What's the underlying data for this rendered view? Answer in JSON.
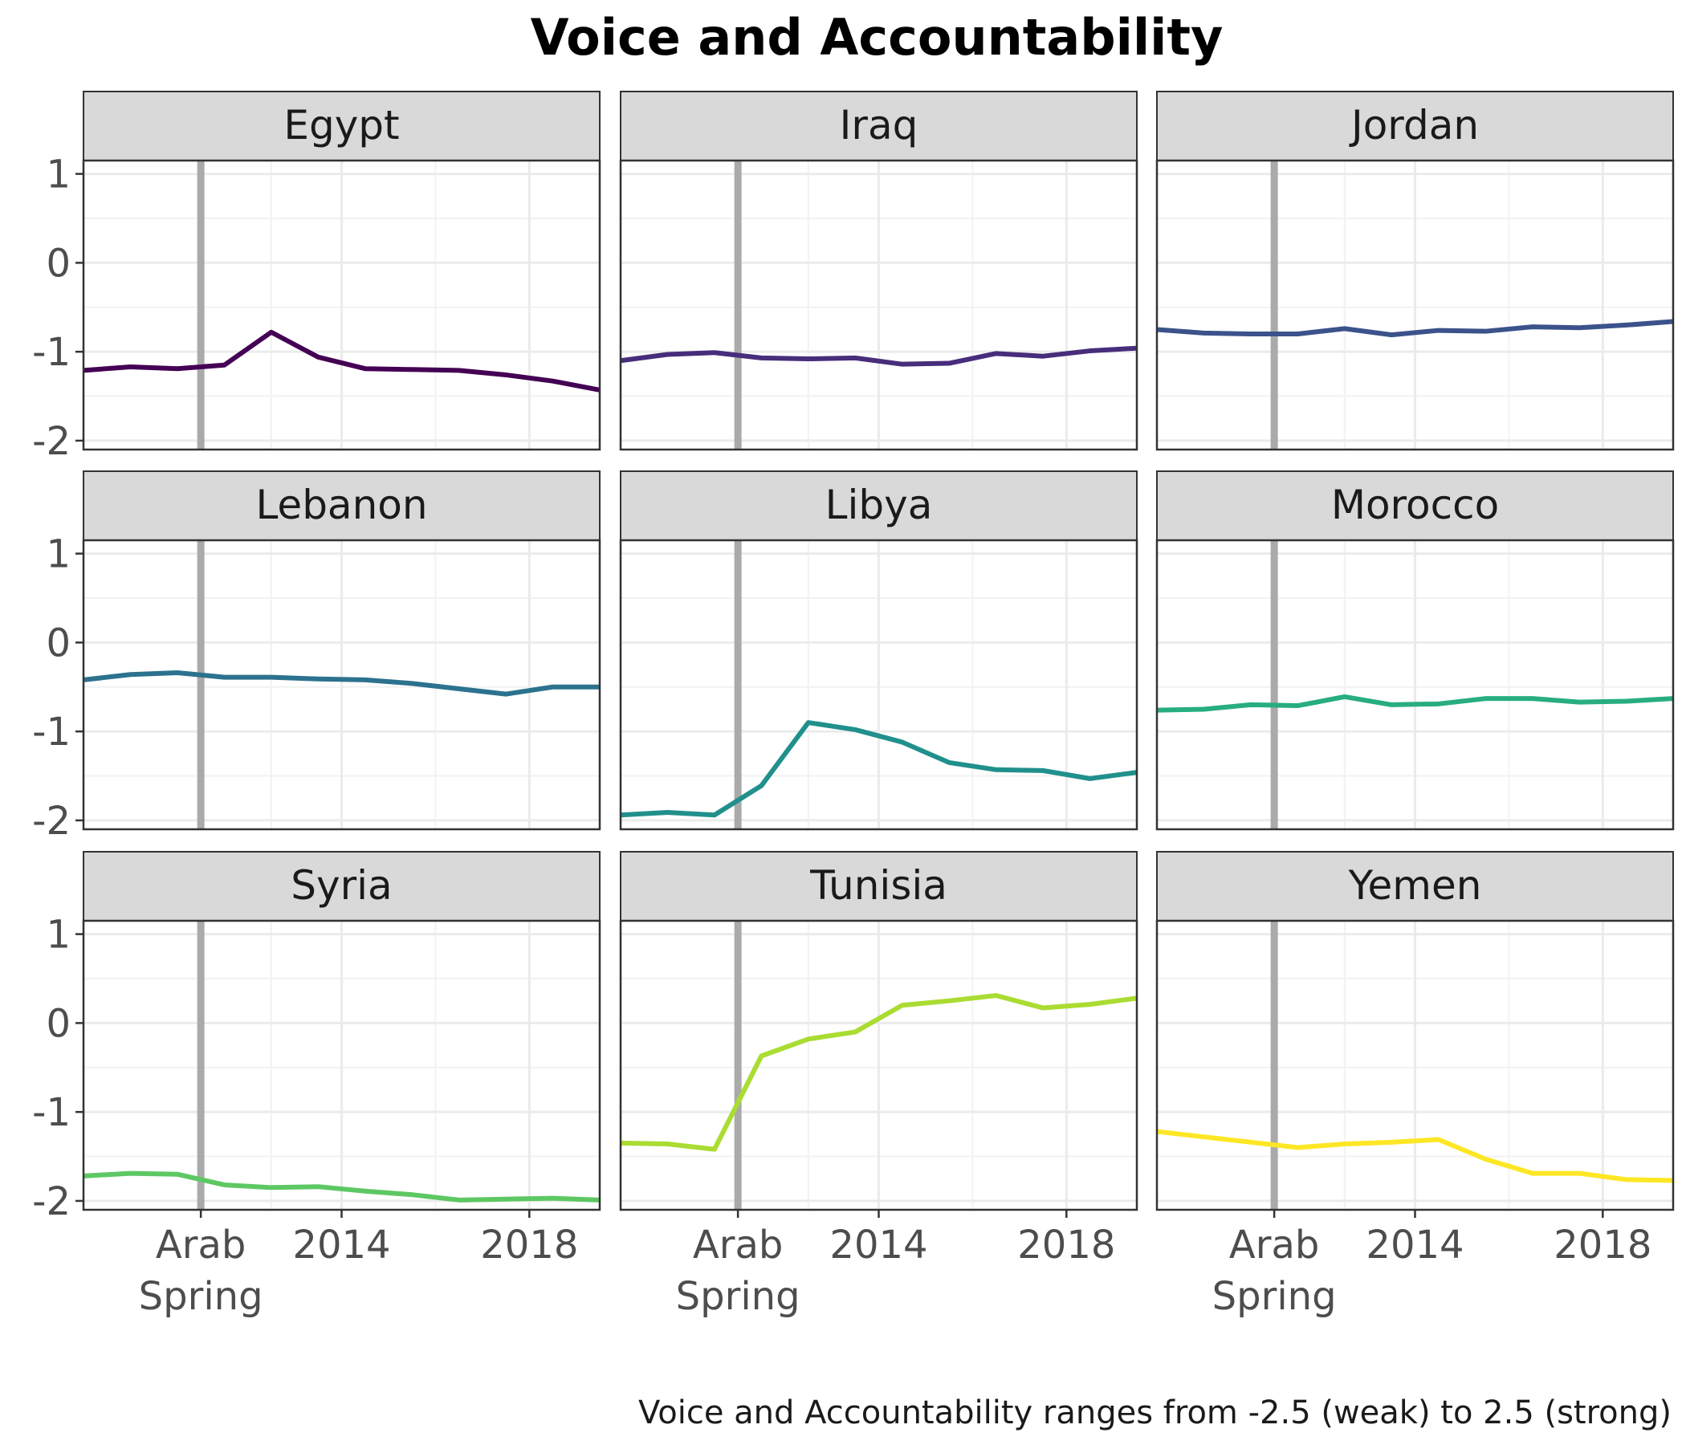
{
  "chart_data": {
    "type": "line",
    "title": "Voice and Accountability",
    "caption": "Voice and Accountability ranges from -2.5 (weak) to 2.5 (strong)",
    "xlabel": "",
    "ylabel": "",
    "x": [
      2009,
      2010,
      2011,
      2012,
      2013,
      2014,
      2015,
      2016,
      2017,
      2018,
      2019
    ],
    "xlim": [
      2008.5,
      2019.5
    ],
    "ylim": [
      -2.1,
      1.15
    ],
    "x_ticks": [
      {
        "value": 2011,
        "label": "Arab Spring"
      },
      {
        "value": 2014,
        "label": "2014"
      },
      {
        "value": 2018,
        "label": "2018"
      }
    ],
    "y_ticks": [
      1,
      0,
      -1,
      -2
    ],
    "y_tick_labels": [
      "1",
      "0",
      "-1",
      "-2"
    ],
    "reference_line": {
      "x": 2011,
      "color": "#aaaaaa"
    },
    "grid": true,
    "facets": [
      {
        "name": "Egypt",
        "color": "#440154",
        "values": [
          -1.21,
          -1.17,
          -1.19,
          -1.15,
          -0.78,
          -1.06,
          -1.19,
          -1.2,
          -1.21,
          -1.26,
          -1.33,
          -1.43
        ]
      },
      {
        "name": "Iraq",
        "color": "#472D7B",
        "values": [
          -1.1,
          -1.03,
          -1.01,
          -1.07,
          -1.08,
          -1.07,
          -1.14,
          -1.13,
          -1.02,
          -1.05,
          -0.99,
          -0.96
        ]
      },
      {
        "name": "Jordan",
        "color": "#3B528B",
        "values": [
          -0.75,
          -0.79,
          -0.8,
          -0.8,
          -0.74,
          -0.81,
          -0.76,
          -0.77,
          -0.72,
          -0.73,
          -0.7,
          -0.66
        ]
      },
      {
        "name": "Lebanon",
        "color": "#2C728E",
        "values": [
          -0.42,
          -0.36,
          -0.34,
          -0.39,
          -0.39,
          -0.41,
          -0.42,
          -0.46,
          -0.52,
          -0.58,
          -0.5,
          -0.5
        ]
      },
      {
        "name": "Libya",
        "color": "#21908C",
        "values": [
          -1.94,
          -1.91,
          -1.94,
          -1.61,
          -0.9,
          -0.98,
          -1.12,
          -1.35,
          -1.43,
          -1.44,
          -1.53,
          -1.46
        ]
      },
      {
        "name": "Morocco",
        "color": "#27AD81",
        "values": [
          -0.76,
          -0.75,
          -0.7,
          -0.71,
          -0.61,
          -0.7,
          -0.69,
          -0.63,
          -0.63,
          -0.67,
          -0.66,
          -0.63
        ]
      },
      {
        "name": "Syria",
        "color": "#5DC863",
        "values": [
          -1.72,
          -1.69,
          -1.7,
          -1.82,
          -1.85,
          -1.84,
          -1.89,
          -1.93,
          -1.99,
          -1.98,
          -1.97,
          -1.99
        ]
      },
      {
        "name": "Tunisia",
        "color": "#AADC32",
        "values": [
          -1.35,
          -1.36,
          -1.42,
          -0.37,
          -0.18,
          -0.1,
          0.2,
          0.25,
          0.31,
          0.17,
          0.21,
          0.28
        ]
      },
      {
        "name": "Yemen",
        "color": "#FDE725",
        "values": [
          -1.22,
          -1.28,
          -1.34,
          -1.4,
          -1.36,
          -1.34,
          -1.31,
          -1.53,
          -1.69,
          -1.69,
          -1.76,
          -1.77
        ]
      }
    ],
    "x_values": [
      2008.5,
      2009.5,
      2010.5,
      2011.5,
      2012.5,
      2013.5,
      2014.5,
      2015.5,
      2016.5,
      2017.5,
      2018.5,
      2019.5
    ]
  }
}
